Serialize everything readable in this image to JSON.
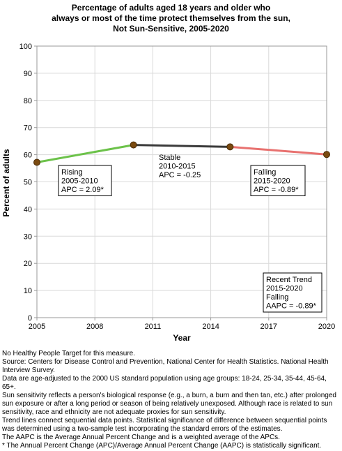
{
  "chart_data": {
    "type": "line",
    "title": [
      "Percentage of adults aged 18 years and older who",
      "always or most of the time protect themselves from the sun,",
      "Not Sun-Sensitive,  2005-2020"
    ],
    "xlabel": "Year",
    "ylabel": "Percent of adults",
    "xlim": [
      2005,
      2020
    ],
    "ylim": [
      0,
      100
    ],
    "x_ticks": [
      2005,
      2008,
      2011,
      2014,
      2017,
      2020
    ],
    "y_ticks": [
      0,
      10,
      20,
      30,
      40,
      50,
      60,
      70,
      80,
      90,
      100
    ],
    "grid": true,
    "points": [
      {
        "x": 2005,
        "y": 57.2
      },
      {
        "x": 2010,
        "y": 63.6
      },
      {
        "x": 2015,
        "y": 62.9
      },
      {
        "x": 2020,
        "y": 60.1
      }
    ],
    "segments": [
      {
        "from": 2005,
        "to": 2010,
        "y0": 57.2,
        "y1": 63.6,
        "color": "#6cc24a"
      },
      {
        "from": 2010,
        "to": 2015,
        "y0": 63.6,
        "y1": 62.9,
        "color": "#3a3a3a"
      },
      {
        "from": 2015,
        "to": 2020,
        "y0": 62.9,
        "y1": 60.1,
        "color": "#e8716f"
      }
    ],
    "marker_color": "#7a4a10",
    "annotations": [
      {
        "lines": [
          "Rising",
          "2005-2010",
          "APC =  2.09*"
        ],
        "boxed": true
      },
      {
        "lines": [
          "Stable",
          "2010-2015",
          "APC = -0.25"
        ],
        "boxed": false
      },
      {
        "lines": [
          "Falling",
          "2015-2020",
          "APC = -0.89*"
        ],
        "boxed": true
      },
      {
        "lines": [
          "Recent Trend",
          "2015-2020",
          "Falling",
          "AAPC = -0.89*"
        ],
        "boxed": true
      }
    ]
  },
  "footnotes": [
    "No Healthy People Target for this measure.",
    "Source: Centers for Disease Control and Prevention, National Center for Health Statistics. National Health Interview Survey.",
    "Data are age-adjusted to the 2000 US standard population using age groups: 18-24, 25-34, 35-44, 45-64, 65+.",
    "Sun sensitivity reflects a person's biological response (e.g., a burn, a burn and then tan, etc.) after prolonged sun exposure or after a long period or season of being relatively unexposed. Although race is related to sun sensitivity, race and ethnicity are not adequate proxies for sun sensitivity.",
    "Trend lines connect sequential data points. Statistical significance of difference between sequential points was determined using a two-sample test incorporating the standard errors of the estimates.",
    "The AAPC is the Average Annual Percent Change and is a weighted average of the APCs.",
    "* The Annual Percent Change (APC)/Average Annual Percent Change (AAPC) is statistically significant."
  ]
}
